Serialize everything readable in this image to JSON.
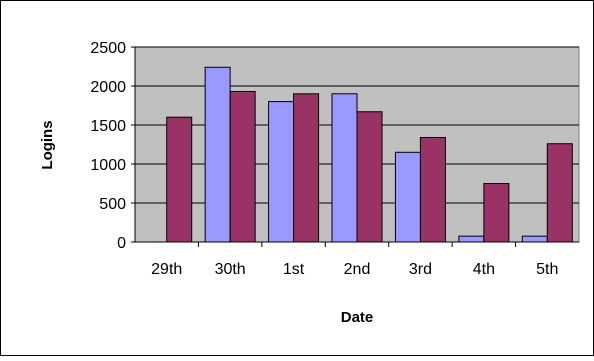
{
  "colors": {
    "background": "#ffffff",
    "plot_area": "#c0c0c0",
    "series_1": "#9999ff",
    "series_2": "#993366",
    "axis": "#000000"
  },
  "chart_data": {
    "type": "bar",
    "categories": [
      "29th",
      "30th",
      "1st",
      "2nd",
      "3rd",
      "4th",
      "5th"
    ],
    "series": [
      {
        "values": [
          0,
          2240,
          1800,
          1900,
          1150,
          75,
          75
        ]
      },
      {
        "values": [
          1600,
          1930,
          1900,
          1670,
          1340,
          750,
          1260
        ]
      }
    ],
    "xlabel": "Date",
    "ylabel": "Logins",
    "ylim": [
      0,
      2500
    ],
    "yticks": [
      "0",
      "500",
      "1000",
      "1500",
      "2000",
      "2500"
    ],
    "grid": true,
    "legend": "none"
  }
}
